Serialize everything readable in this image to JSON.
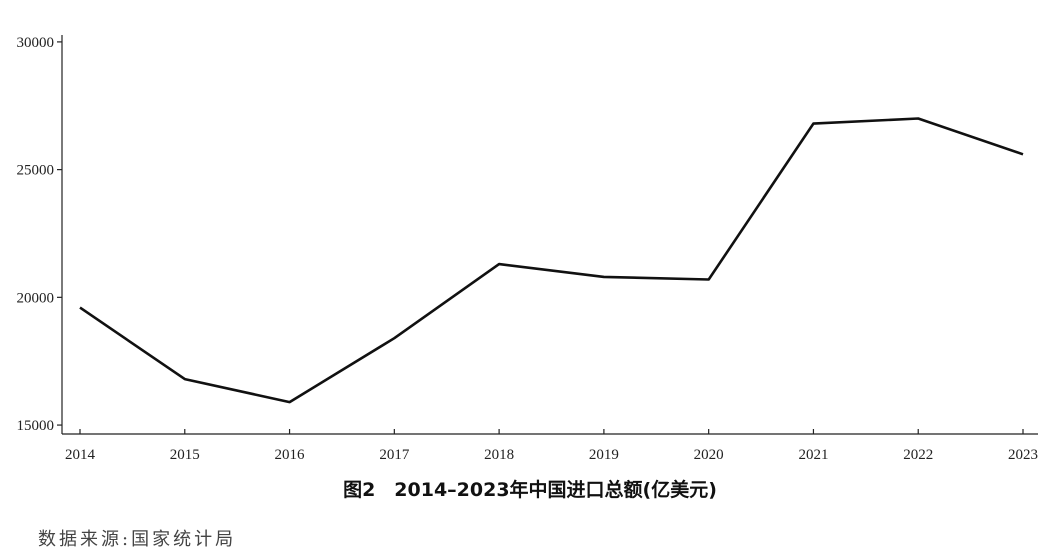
{
  "chart_data": {
    "type": "line",
    "title": "图2　2014–2023年中国进口总额(亿美元)",
    "source": "数据来源:国家统计局",
    "categories": [
      "2014",
      "2015",
      "2016",
      "2017",
      "2018",
      "2019",
      "2020",
      "2021",
      "2022",
      "2023"
    ],
    "series": [
      {
        "name": "中国进口总额",
        "color": "#111111",
        "values": [
          19600,
          16800,
          15900,
          18400,
          21300,
          20800,
          20700,
          26800,
          27000,
          25600
        ]
      }
    ],
    "ylim": [
      14650,
      30270
    ],
    "yticks": [
      15000,
      20000,
      25000,
      30000
    ],
    "grid": false
  }
}
